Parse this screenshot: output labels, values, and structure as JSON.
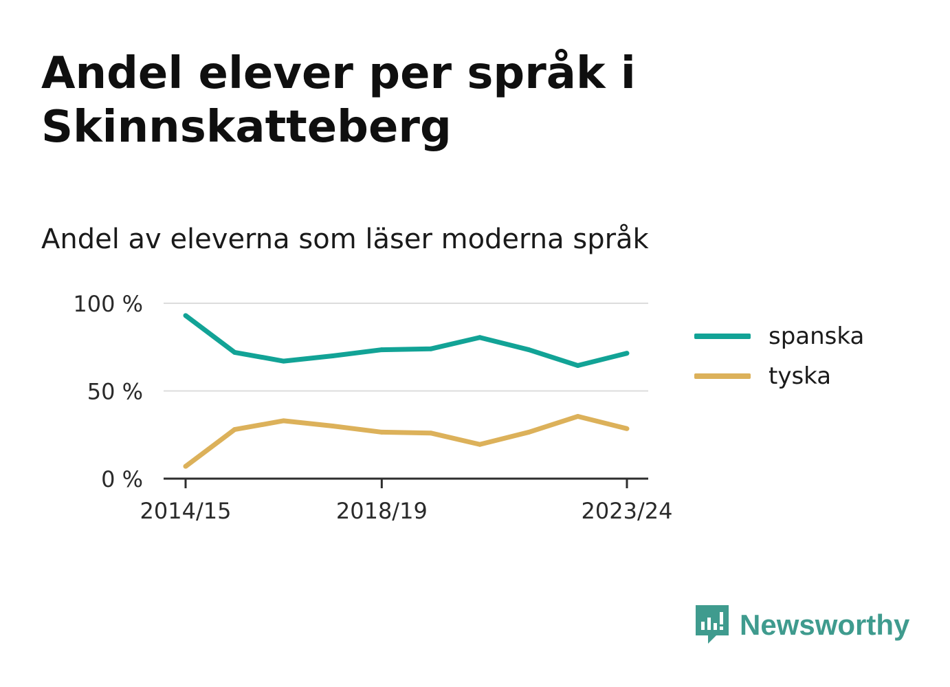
{
  "title": "Andel elever per språk i Skinnskatteberg",
  "subtitle": "Andel av eleverna som läser moderna språk",
  "brand": {
    "name": "Newsworthy",
    "icon": "newsworthy-logo-icon",
    "color": "#3f9b8e"
  },
  "chart_data": {
    "type": "line",
    "x": [
      "2014/15",
      "2015/16",
      "2016/17",
      "2017/18",
      "2018/19",
      "2019/20",
      "2020/21",
      "2021/22",
      "2022/23",
      "2023/24"
    ],
    "x_tick_labels": [
      "2014/15",
      "2018/19",
      "2023/24"
    ],
    "y_tick_labels": [
      "100 %",
      "50 %",
      "0 %"
    ],
    "y_ticks": [
      100,
      50,
      0
    ],
    "ylim": [
      0,
      100
    ],
    "grid": true,
    "legend": "right",
    "series": [
      {
        "name": "spanska",
        "color": "#12a396",
        "values": [
          93,
          72,
          67,
          70,
          73.5,
          74,
          80.5,
          73.5,
          64.5,
          71.5
        ]
      },
      {
        "name": "tyska",
        "color": "#dcb15a",
        "values": [
          7,
          28,
          33,
          30,
          26.5,
          26,
          19.5,
          26.5,
          35.5,
          28.5
        ]
      }
    ]
  }
}
